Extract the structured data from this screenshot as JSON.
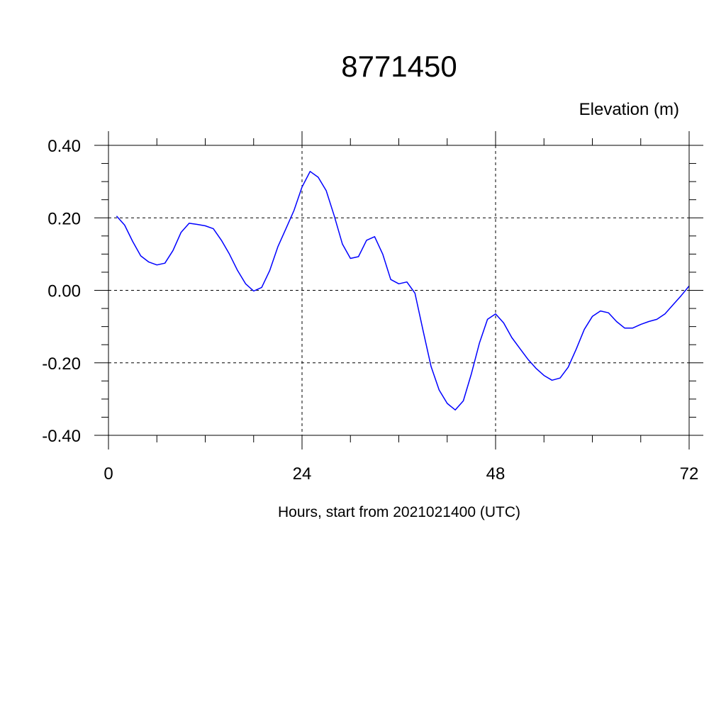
{
  "chart_data": {
    "type": "line",
    "title": "8771450",
    "ylabel": "Elevation (m)",
    "xlabel": "Hours, start from 2021021400 (UTC)",
    "xlim": [
      0,
      72
    ],
    "ylim": [
      -0.4,
      0.4
    ],
    "x_ticks": [
      0,
      24,
      48,
      72
    ],
    "x_tick_labels": [
      "0",
      "24",
      "48",
      "72"
    ],
    "y_ticks": [
      0.4,
      0.2,
      0.0,
      -0.2,
      -0.4
    ],
    "y_tick_labels": [
      "0.40",
      "0.20",
      "0.00",
      "-0.20",
      "-0.40"
    ],
    "grid": "dashed at major ticks",
    "series": [
      {
        "color": "#0000ff",
        "x": [
          1,
          2,
          3,
          4,
          5,
          6,
          7,
          8,
          9,
          10,
          11,
          12,
          13,
          14,
          15,
          16,
          17,
          18,
          19,
          20,
          21,
          22,
          23,
          24,
          25,
          26,
          27,
          28,
          29,
          30,
          31,
          32,
          33,
          34,
          35,
          36,
          37,
          38,
          39,
          40,
          41,
          42,
          43,
          44,
          45,
          46,
          47,
          48,
          49,
          50,
          51,
          52,
          53,
          54,
          55,
          56,
          57,
          58,
          59,
          60,
          61,
          62,
          63,
          64,
          65,
          66,
          67,
          68,
          69,
          70,
          71,
          72
        ],
        "values": [
          0.205,
          0.18,
          0.135,
          0.095,
          0.078,
          0.07,
          0.075,
          0.11,
          0.16,
          0.185,
          0.182,
          0.178,
          0.17,
          0.138,
          0.1,
          0.055,
          0.018,
          -0.002,
          0.008,
          0.055,
          0.12,
          0.17,
          0.22,
          0.285,
          0.328,
          0.312,
          0.275,
          0.205,
          0.128,
          0.088,
          0.093,
          0.138,
          0.148,
          0.1,
          0.03,
          0.018,
          0.023,
          -0.008,
          -0.11,
          -0.21,
          -0.275,
          -0.312,
          -0.33,
          -0.305,
          -0.23,
          -0.145,
          -0.08,
          -0.065,
          -0.09,
          -0.13,
          -0.16,
          -0.19,
          -0.215,
          -0.235,
          -0.248,
          -0.242,
          -0.212,
          -0.162,
          -0.108,
          -0.072,
          -0.057,
          -0.062,
          -0.086,
          -0.104,
          -0.104,
          -0.094,
          -0.086,
          -0.08,
          -0.065,
          -0.04,
          -0.015,
          0.012
        ]
      }
    ]
  }
}
